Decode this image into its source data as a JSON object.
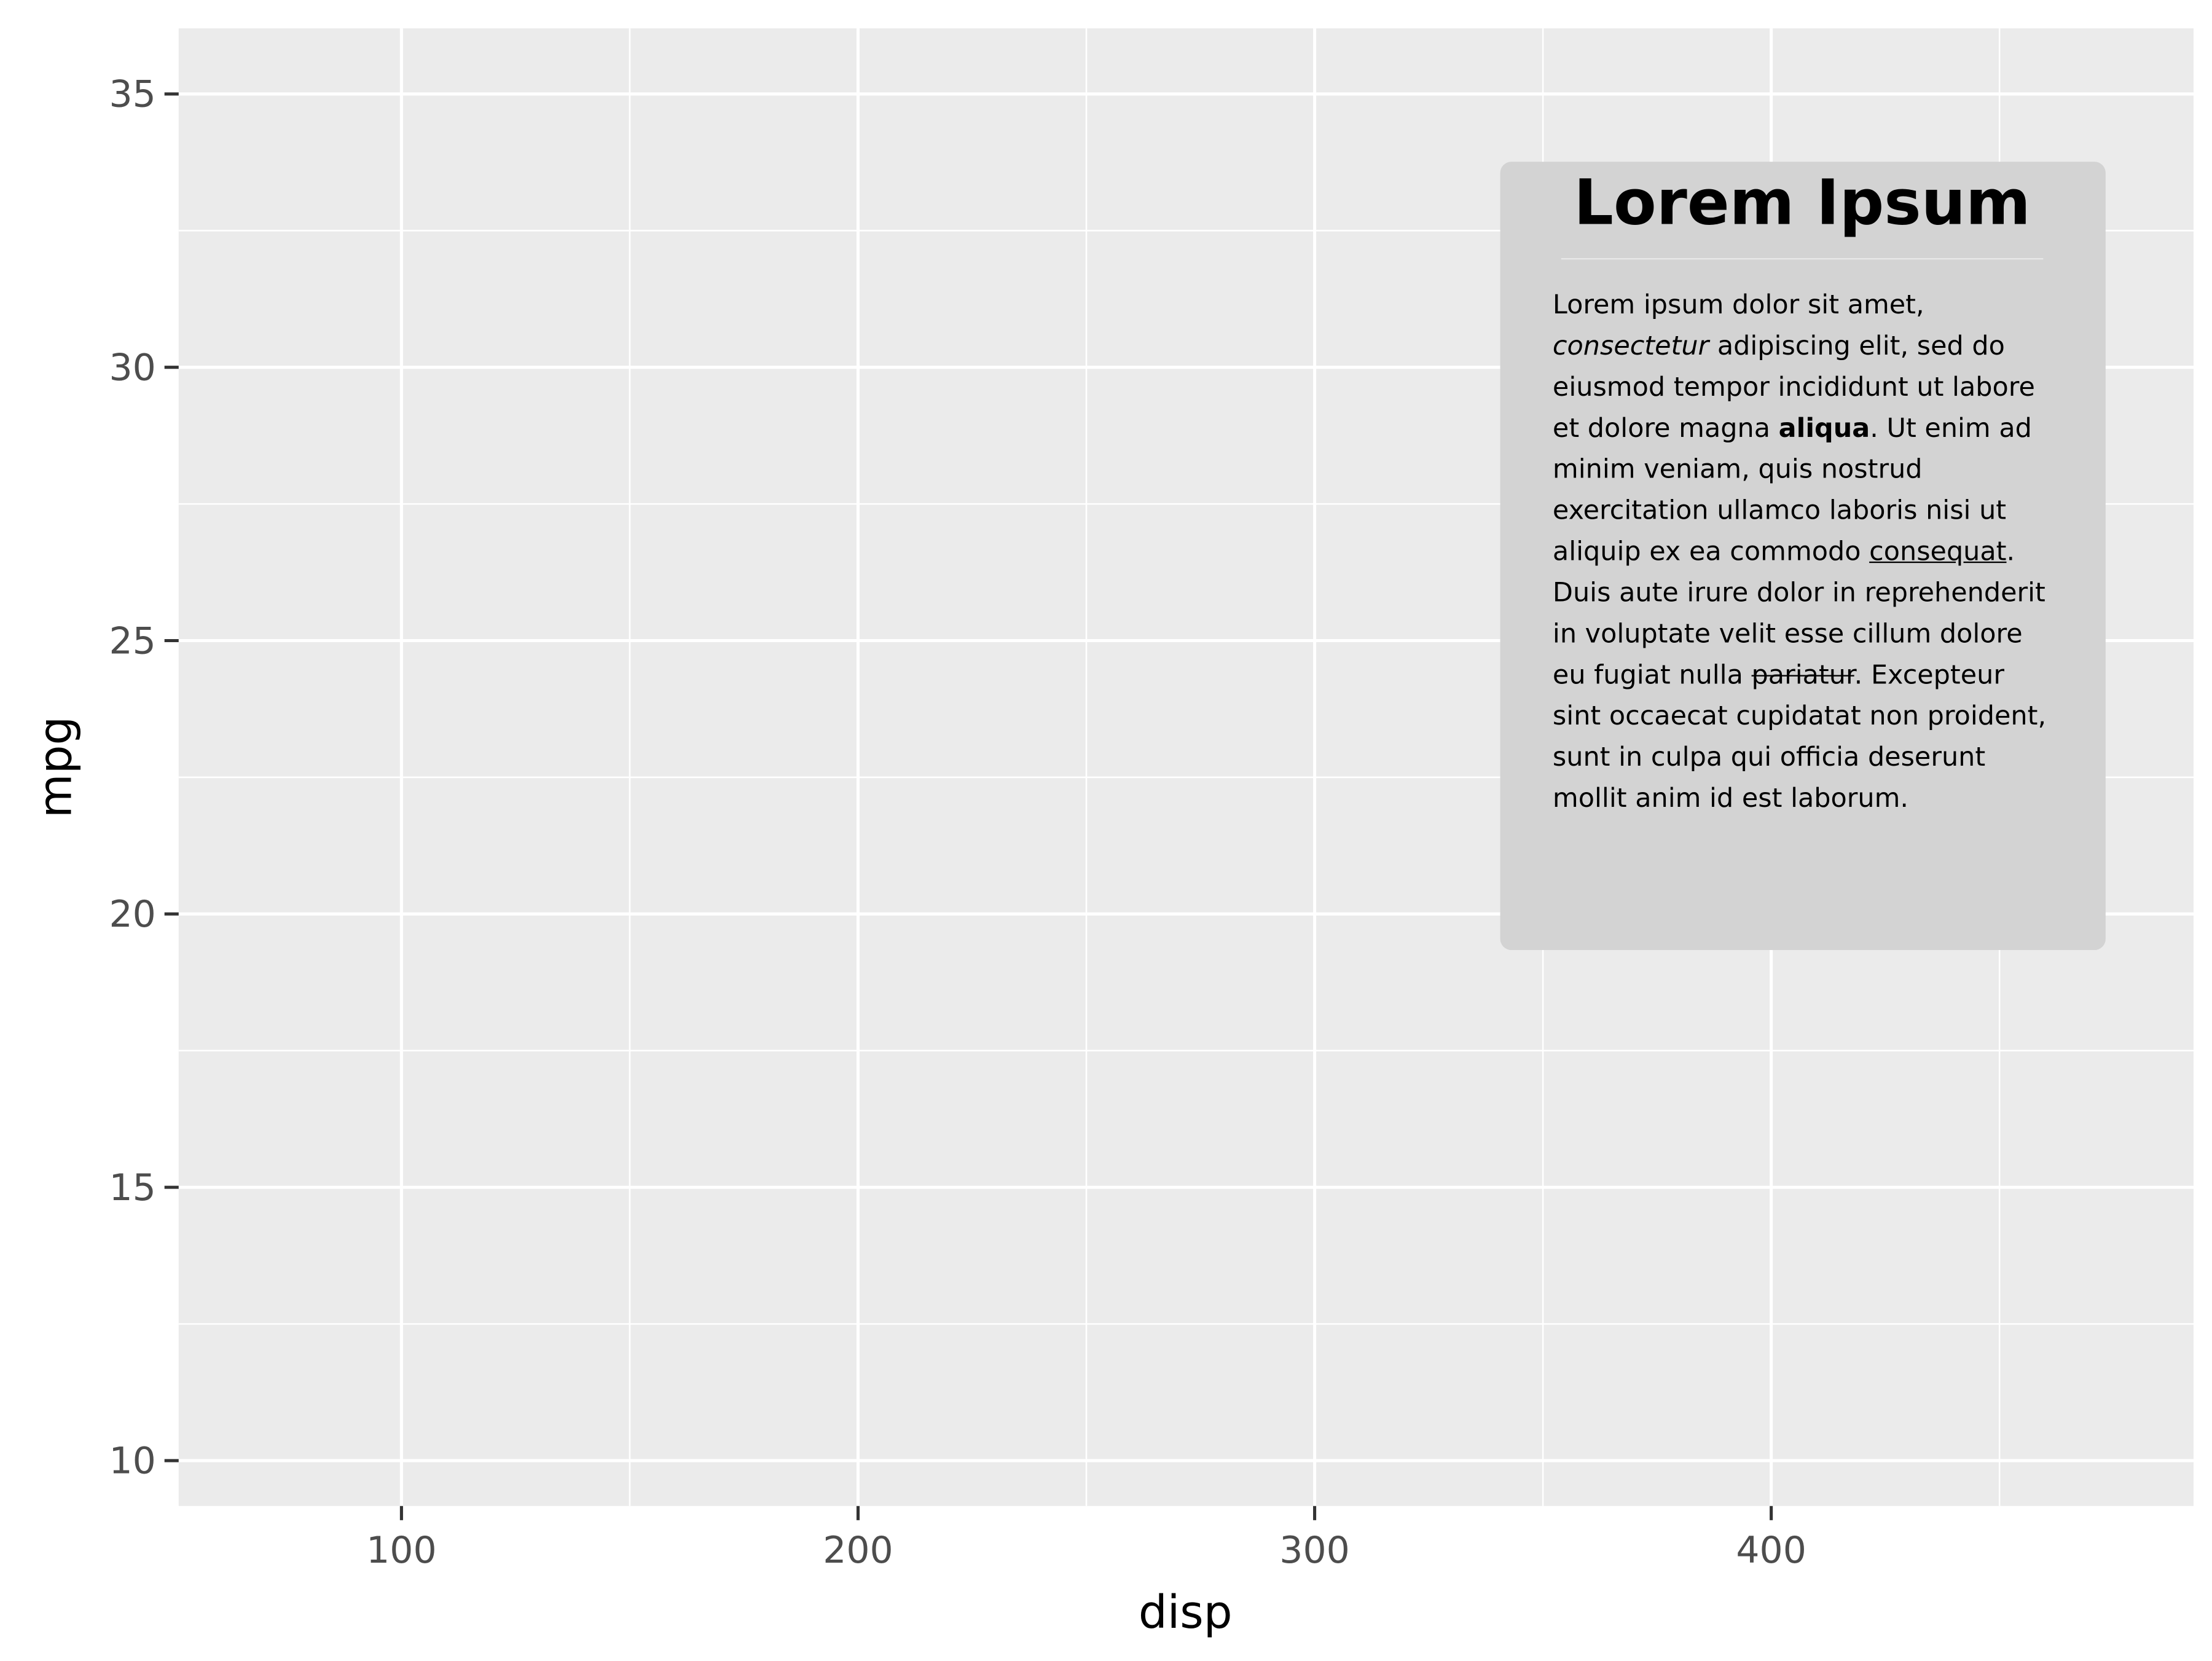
{
  "chart_data": {
    "type": "scatter",
    "x_label": "disp",
    "y_label": "mpg",
    "xlim": [
      51.2,
      492.5
    ],
    "xticks": [
      100,
      200,
      300,
      400
    ],
    "xminor": [
      150,
      250,
      350,
      450
    ],
    "ylim": [
      9.17,
      36.2
    ],
    "yticks": [
      10,
      15,
      20,
      25,
      30,
      35
    ],
    "yminor": [
      12.5,
      17.5,
      22.5,
      27.5,
      32.5
    ],
    "grid": true,
    "panel_color": "#ebebeb",
    "annotation": {
      "title": "Lorem Ipsum",
      "box_color": "#d3d3d3",
      "body": [
        {
          "text": "Lorem ipsum dolor sit amet, "
        },
        {
          "text": "consectetur",
          "style": "italic"
        },
        {
          "text": " adipiscing elit, sed do eiusmod tempor incididunt ut labore et dolore magna "
        },
        {
          "text": "aliqua",
          "style": "bold"
        },
        {
          "text": ". Ut enim ad minim veniam, quis nostrud exercitation ullamco laboris nisi ut aliquip ex ea commodo "
        },
        {
          "text": "consequat",
          "style": "underline"
        },
        {
          "text": ". Duis aute irure dolor in reprehenderit in voluptate velit esse cillum dolore eu fugiat nulla "
        },
        {
          "text": "pariatur",
          "style": "line-through"
        },
        {
          "text": ". Excepteur sint occaecat cupidatat non proident, sunt in culpa qui officia deserunt mollit anim id est laborum."
        }
      ]
    }
  }
}
